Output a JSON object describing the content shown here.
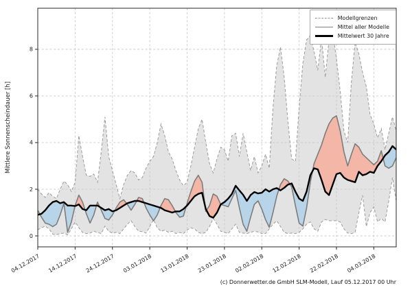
{
  "figure": {
    "ylabel": "Mittlere Sonnenscheindauer [h]",
    "footer": "(c) Donnerwetter.de GmbH SLM-Modell, Lauf 05.12.2017 00 Uhr"
  },
  "legend": {
    "position": "upper right",
    "items": [
      {
        "label": "Modellgrenzen",
        "style": "dashed-gray"
      },
      {
        "label": "Mittel aller Modelle",
        "style": "solid-gray"
      },
      {
        "label": "Mittelwert 30 Jahre",
        "style": "thick-black"
      }
    ]
  },
  "chart_data": {
    "type": "line",
    "title": "",
    "xlabel": "",
    "ylabel": "Mittlere Sonnenscheindauer [h]",
    "grid": true,
    "legend_position": "upper right",
    "x_unit": "days since 04.12.2017",
    "xlim_days": [
      0,
      96
    ],
    "ylim": [
      -0.47,
      9.76
    ],
    "yticks": [
      0,
      2,
      4,
      6,
      8
    ],
    "x_tick_days": [
      0,
      10,
      20,
      30,
      40,
      50,
      60,
      70,
      80,
      90
    ],
    "x_tick_labels": [
      "04.12.2017",
      "14.12.2017",
      "24.12.2017",
      "03.01.2018",
      "13.01.2018",
      "23.01.2018",
      "02.02.2018",
      "12.02.2018",
      "22.02.2018",
      "04.03.2018"
    ],
    "colors": {
      "band_fill": "#c8c8c8",
      "band_edge": "#9a9a9a",
      "model_mean": "#7c7c7c",
      "mean30": "#000000",
      "above_fill": "#f4b3a3",
      "below_fill": "#b5d3e8",
      "grid": "#c9c9c9",
      "spine": "#262626",
      "text": "#1a1a1a"
    },
    "series": [
      {
        "name": "Modellgrenzen (oberes Band)",
        "role": "band-upper",
        "values": [
          2.0,
          1.8,
          1.65,
          1.85,
          1.7,
          1.6,
          2.0,
          2.35,
          2.2,
          1.9,
          2.3,
          4.3,
          3.4,
          2.6,
          2.55,
          2.65,
          2.3,
          3.6,
          5.1,
          3.4,
          2.8,
          2.2,
          1.6,
          2.2,
          2.6,
          2.8,
          2.7,
          2.4,
          2.5,
          2.9,
          3.2,
          3.4,
          4.0,
          4.8,
          4.3,
          3.6,
          3.3,
          2.8,
          2.4,
          2.15,
          2.3,
          3.0,
          3.8,
          4.6,
          5.0,
          4.0,
          3.1,
          2.7,
          3.3,
          3.8,
          3.7,
          3.2,
          4.3,
          4.4,
          3.4,
          4.4,
          3.6,
          2.8,
          3.4,
          2.7,
          3.0,
          3.5,
          2.9,
          5.5,
          7.3,
          8.1,
          6.8,
          4.9,
          3.3,
          3.2,
          5.5,
          7.4,
          8.4,
          8.6,
          7.9,
          7.1,
          8.5,
          6.8,
          8.4,
          8.7,
          7.6,
          6.2,
          4.5,
          4.0,
          6.6,
          8.3,
          7.8,
          7.0,
          6.4,
          5.2,
          4.8,
          4.2,
          4.6,
          3.7,
          4.4,
          5.1,
          4.5
        ]
      },
      {
        "name": "Modellgrenzen (unteres Band)",
        "role": "band-lower",
        "values": [
          0.26,
          0.35,
          0.42,
          0.3,
          0.08,
          0.05,
          0.1,
          0.12,
          0.05,
          0.3,
          0.6,
          0.35,
          0.15,
          0.1,
          0.12,
          0.2,
          0.15,
          0.1,
          0.42,
          0.2,
          0.12,
          0.15,
          0.1,
          0.3,
          0.5,
          0.65,
          0.4,
          0.2,
          0.18,
          0.12,
          0.4,
          0.7,
          0.35,
          0.2,
          0.25,
          0.15,
          0.2,
          0.1,
          0.15,
          0.1,
          0.25,
          0.35,
          0.3,
          0.15,
          0.1,
          0.15,
          0.4,
          0.75,
          0.5,
          0.2,
          0.15,
          0.1,
          0.3,
          0.5,
          0.15,
          0.12,
          0.1,
          0.15,
          0.2,
          0.17,
          0.1,
          0.1,
          0.3,
          0.5,
          0.65,
          0.4,
          0.15,
          0.1,
          0.12,
          0.1,
          0.15,
          0.3,
          0.5,
          0.6,
          0.3,
          0.2,
          0.6,
          0.7,
          0.65,
          0.65,
          0.65,
          0.6,
          0.3,
          0.12,
          0.1,
          0.15,
          1.0,
          1.74,
          0.4,
          1.0,
          1.24,
          0.6,
          0.75,
          0.6,
          1.5,
          2.5,
          1.5
        ]
      },
      {
        "name": "Mittel aller Modelle",
        "role": "line",
        "values": [
          1.1,
          0.8,
          0.55,
          0.5,
          0.4,
          0.5,
          0.9,
          1.4,
          0.15,
          0.6,
          1.3,
          1.75,
          1.45,
          0.95,
          0.55,
          0.9,
          1.45,
          1.1,
          0.75,
          0.68,
          0.9,
          1.2,
          1.45,
          1.55,
          1.35,
          1.1,
          1.35,
          1.65,
          1.6,
          1.2,
          0.9,
          0.65,
          0.9,
          1.3,
          1.6,
          1.55,
          1.3,
          1.0,
          0.8,
          0.85,
          1.4,
          1.9,
          2.35,
          2.6,
          2.3,
          1.05,
          1.3,
          1.8,
          1.7,
          1.35,
          1.3,
          1.25,
          1.6,
          1.95,
          1.2,
          0.5,
          0.2,
          0.8,
          1.35,
          1.5,
          1.15,
          0.7,
          0.37,
          1.0,
          1.7,
          2.2,
          2.45,
          2.35,
          2.1,
          1.3,
          0.55,
          0.42,
          1.2,
          2.3,
          3.1,
          3.5,
          3.9,
          4.4,
          4.8,
          5.05,
          5.15,
          4.5,
          3.6,
          3.0,
          3.5,
          3.95,
          3.8,
          3.5,
          3.35,
          3.2,
          3.05,
          3.2,
          3.65,
          3.0,
          2.9,
          3.0,
          3.35
        ]
      },
      {
        "name": "Mittelwert 30 Jahre",
        "role": "line",
        "values": [
          0.9,
          0.95,
          1.1,
          1.3,
          1.45,
          1.5,
          1.4,
          1.45,
          1.3,
          1.3,
          1.28,
          1.35,
          1.15,
          1.1,
          1.3,
          1.3,
          1.3,
          1.2,
          1.1,
          1.15,
          1.05,
          1.1,
          1.2,
          1.3,
          1.4,
          1.45,
          1.5,
          1.5,
          1.45,
          1.4,
          1.35,
          1.3,
          1.25,
          1.2,
          1.1,
          1.05,
          1.0,
          1.05,
          1.05,
          1.15,
          1.3,
          1.5,
          1.7,
          1.8,
          1.85,
          1.15,
          0.85,
          0.78,
          1.0,
          1.35,
          1.45,
          1.6,
          1.8,
          2.15,
          1.95,
          1.76,
          1.5,
          1.75,
          1.88,
          1.82,
          1.85,
          2.0,
          1.9,
          2.0,
          2.05,
          1.95,
          2.06,
          2.2,
          2.25,
          1.9,
          1.6,
          1.5,
          1.9,
          2.6,
          2.9,
          2.85,
          2.4,
          1.9,
          1.75,
          2.2,
          2.65,
          2.7,
          2.5,
          2.4,
          2.35,
          2.3,
          2.75,
          2.6,
          2.65,
          2.75,
          2.7,
          3.0,
          3.2,
          3.45,
          3.6,
          3.85,
          3.7
        ]
      }
    ]
  }
}
